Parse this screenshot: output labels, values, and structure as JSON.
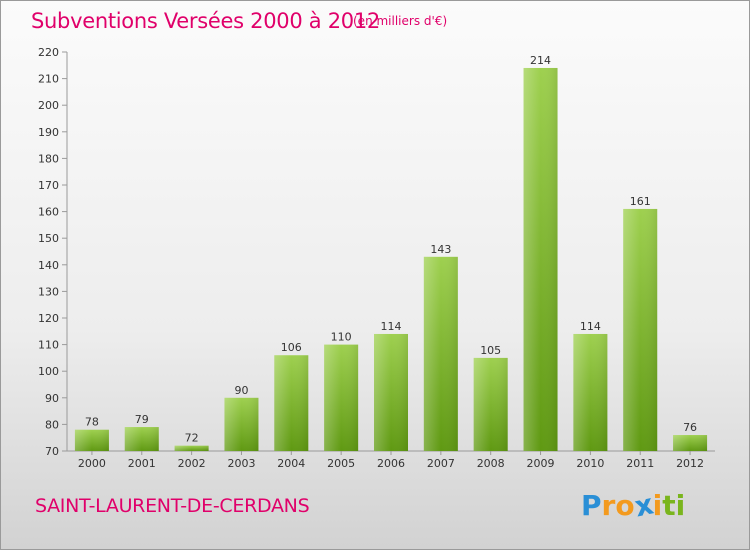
{
  "header": {
    "title": "Subventions Versées 2000 à 2012",
    "subtitle": "(en milliers d'€)"
  },
  "footer": {
    "commune": "SAINT-LAURENT-DE-CERDANS",
    "logo_letters": [
      "P",
      "r",
      "o",
      "x",
      "i",
      "t",
      "i"
    ],
    "logo_colors": [
      "#2a8fd6",
      "#f39a1e",
      "#f39a1e",
      "#2a8fd6",
      "#f39a1e",
      "#7ab51d",
      "#7ab51d"
    ]
  },
  "chart_data": {
    "type": "bar",
    "title": "Subventions Versées 2000 à 2012",
    "subtitle": "(en milliers d'€)",
    "xlabel": "",
    "ylabel": "",
    "categories": [
      "2000",
      "2001",
      "2002",
      "2003",
      "2004",
      "2005",
      "2006",
      "2007",
      "2008",
      "2009",
      "2010",
      "2011",
      "2012"
    ],
    "values": [
      78,
      79,
      72,
      90,
      106,
      110,
      114,
      143,
      105,
      214,
      114,
      161,
      76
    ],
    "ylim": [
      70,
      220
    ],
    "yticks": [
      70,
      80,
      90,
      100,
      110,
      120,
      130,
      140,
      150,
      160,
      170,
      180,
      190,
      200,
      210,
      220
    ],
    "grid": false,
    "bar_color": "#7ab51d",
    "text_color": "#e0006a"
  }
}
